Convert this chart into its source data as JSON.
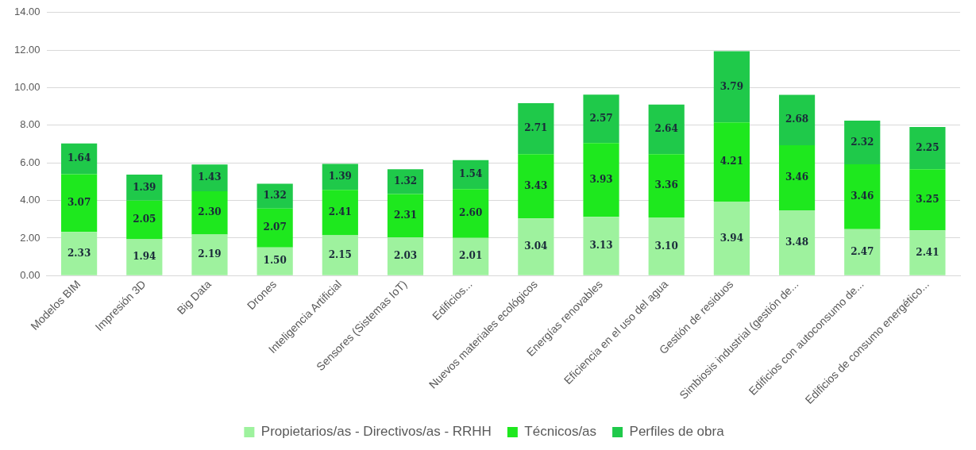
{
  "chart_data": {
    "type": "bar",
    "stacked": true,
    "categories": [
      "Modelos BIM",
      "Impresión 3D",
      "Big Data",
      "Drones",
      "Inteligencia Artificial",
      "Sensores (Sistemas IoT)",
      "Edificios...",
      "Nuevos materiales ecológicos",
      "Energías renovables",
      "Eficiencia en el uso del agua",
      "Gestión de residuos",
      "Simbiosis industrial (gestión de...",
      "Edificios con autoconsumo de...",
      "Edificios de consumo energético..."
    ],
    "series": [
      {
        "name": "Propietarios/as - Directivos/as - RRHH",
        "color": "#9ef29e",
        "values": [
          2.33,
          1.94,
          2.19,
          1.5,
          2.15,
          2.03,
          2.01,
          3.04,
          3.13,
          3.1,
          3.94,
          3.48,
          2.47,
          2.41
        ],
        "value_labels": [
          "2.33",
          "1.94",
          "2.19",
          "1.50",
          "2.15",
          "2.03",
          "2.01",
          "3.04",
          "3.13",
          "3.10",
          "3.94",
          "3.48",
          "2.47",
          "2.41"
        ]
      },
      {
        "name": "Técnicos/as",
        "color": "#1ee81e",
        "values": [
          3.07,
          2.05,
          2.3,
          2.07,
          2.41,
          2.31,
          2.6,
          3.43,
          3.93,
          3.36,
          4.21,
          3.46,
          3.46,
          3.25
        ],
        "value_labels": [
          "3.07",
          "2.05",
          "2.30",
          "2.07",
          "2.41",
          "2.31",
          "2.60",
          "3.43",
          "3.93",
          "3.36",
          "4.21",
          "3.46",
          "3.46",
          "3.25"
        ]
      },
      {
        "name": "Perfiles de obra",
        "color": "#1fc94a",
        "values": [
          1.64,
          1.39,
          1.43,
          1.32,
          1.39,
          1.32,
          1.54,
          2.71,
          2.57,
          2.64,
          3.79,
          2.68,
          2.32,
          2.25
        ],
        "value_labels": [
          "1.64",
          "1.39",
          "1.43",
          "1.32",
          "1.39",
          "1.32",
          "1.54",
          "2.71",
          "2.57",
          "2.64",
          "3.79",
          "2.68",
          "2.32",
          "2.25"
        ]
      }
    ],
    "ylim": [
      0,
      14
    ],
    "yticks": [
      {
        "value": 0,
        "label": "0.00"
      },
      {
        "value": 2,
        "label": "2.00"
      },
      {
        "value": 4,
        "label": "4.00"
      },
      {
        "value": 6,
        "label": "6.00"
      },
      {
        "value": 8,
        "label": "8.00"
      },
      {
        "value": 10,
        "label": "10.00"
      },
      {
        "value": 12,
        "label": "12.00"
      },
      {
        "value": 14,
        "label": "14.00"
      }
    ],
    "grid": "y",
    "legend": "bottom"
  }
}
